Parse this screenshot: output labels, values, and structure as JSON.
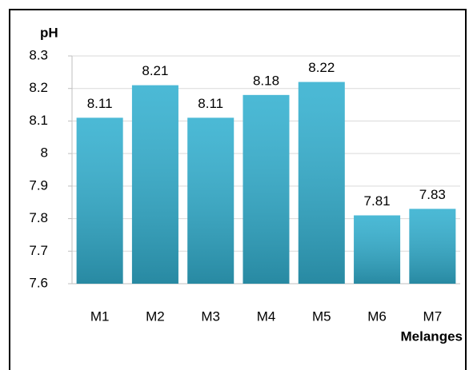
{
  "chart_data": {
    "type": "bar",
    "y_label": "pH",
    "x_label": "Melanges",
    "categories": [
      "M1",
      "M2",
      "M3",
      "M4",
      "M5",
      "M6",
      "M7"
    ],
    "values": [
      8.11,
      8.21,
      8.11,
      8.18,
      8.22,
      7.81,
      7.83
    ],
    "color": "#33b0d0",
    "ylim": [
      7.6,
      8.3
    ],
    "yticks": [
      7.6,
      7.7,
      7.8,
      7.9,
      8,
      8.1,
      8.2,
      8.3
    ],
    "grid": true
  }
}
